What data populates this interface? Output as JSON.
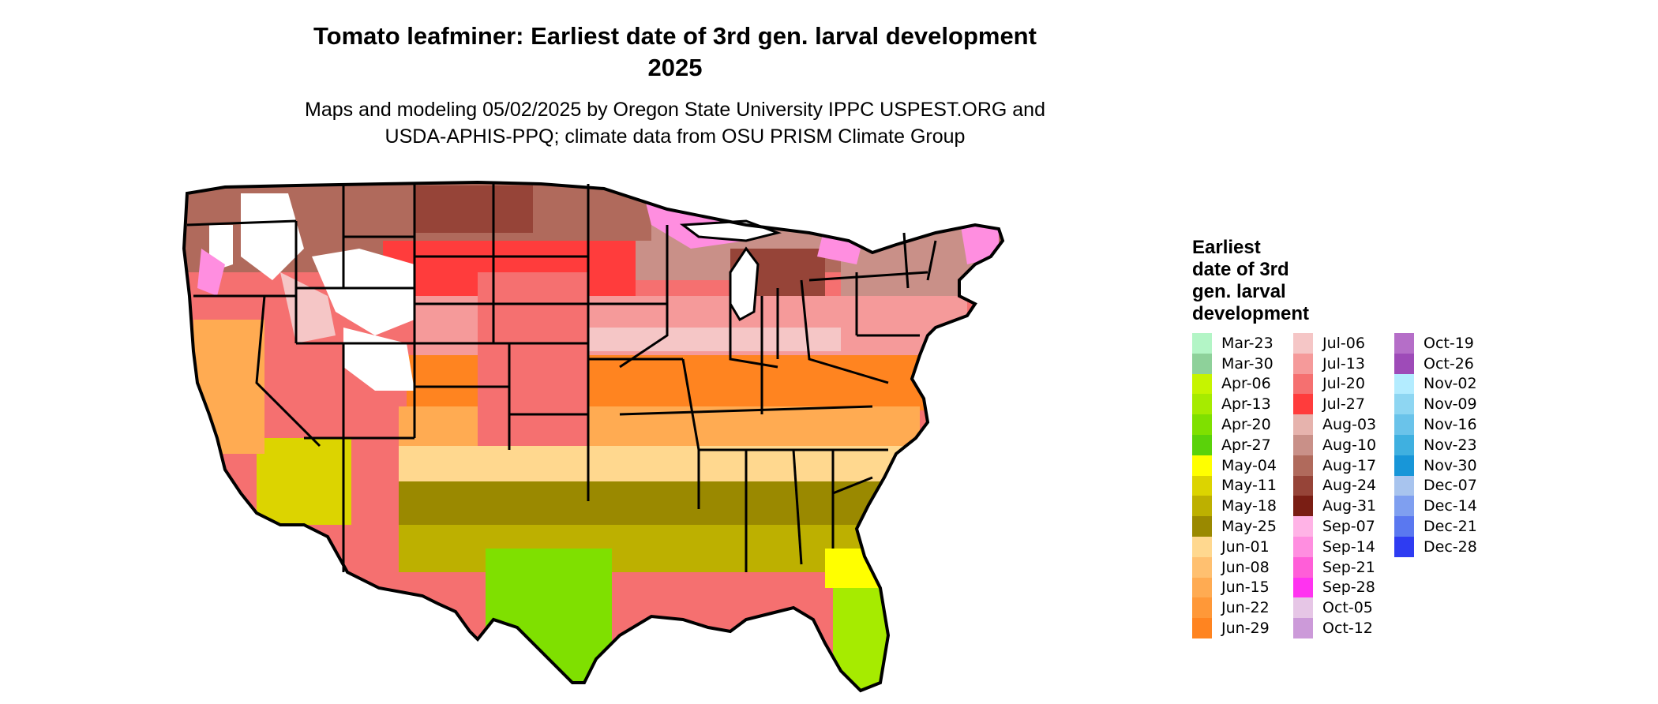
{
  "title_lines": [
    "Tomato leafminer: Earliest date of 3rd gen. larval development",
    "2025"
  ],
  "subtitle_lines": [
    "Maps and modeling 05/02/2025 by Oregon State University IPPC USPEST.ORG and",
    "USDA-APHIS-PPQ; climate data from OSU PRISM Climate Group"
  ],
  "legend": {
    "title_lines": [
      "Earliest",
      "date of 3rd",
      "gen. larval",
      "development"
    ],
    "columns": [
      [
        {
          "label": "Mar-23",
          "color": "#b3f5c6"
        },
        {
          "label": "Mar-30",
          "color": "#8ed19a"
        },
        {
          "label": "Apr-06",
          "color": "#c6f400"
        },
        {
          "label": "Apr-13",
          "color": "#a6eb00"
        },
        {
          "label": "Apr-20",
          "color": "#7fe000"
        },
        {
          "label": "Apr-27",
          "color": "#5ad20a"
        },
        {
          "label": "May-04",
          "color": "#ffff00"
        },
        {
          "label": "May-11",
          "color": "#dcd400"
        },
        {
          "label": "May-18",
          "color": "#bdb000"
        },
        {
          "label": "May-25",
          "color": "#9a8900"
        },
        {
          "label": "Jun-01",
          "color": "#ffd88f"
        },
        {
          "label": "Jun-08",
          "color": "#ffc070"
        },
        {
          "label": "Jun-15",
          "color": "#ffab52"
        },
        {
          "label": "Jun-22",
          "color": "#ff9838"
        },
        {
          "label": "Jun-29",
          "color": "#ff8420"
        }
      ],
      [
        {
          "label": "Jul-06",
          "color": "#f5c6c6"
        },
        {
          "label": "Jul-13",
          "color": "#f59a9a"
        },
        {
          "label": "Jul-20",
          "color": "#f57070"
        },
        {
          "label": "Jul-27",
          "color": "#ff3c3c"
        },
        {
          "label": "Aug-03",
          "color": "#e6b3ad"
        },
        {
          "label": "Aug-10",
          "color": "#c99088"
        },
        {
          "label": "Aug-17",
          "color": "#b06a5c"
        },
        {
          "label": "Aug-24",
          "color": "#964438"
        },
        {
          "label": "Aug-31",
          "color": "#7a1e14"
        },
        {
          "label": "Sep-07",
          "color": "#ffb3e6"
        },
        {
          "label": "Sep-14",
          "color": "#ff8ee0"
        },
        {
          "label": "Sep-21",
          "color": "#ff5ed8"
        },
        {
          "label": "Sep-28",
          "color": "#ff33f0"
        },
        {
          "label": "Oct-05",
          "color": "#e6c6e6"
        },
        {
          "label": "Oct-12",
          "color": "#cc9ad9"
        }
      ],
      [
        {
          "label": "Oct-19",
          "color": "#b56ec8"
        },
        {
          "label": "Oct-26",
          "color": "#9e4bb8"
        },
        {
          "label": "Nov-02",
          "color": "#b3ecff"
        },
        {
          "label": "Nov-09",
          "color": "#8ed6f2"
        },
        {
          "label": "Nov-16",
          "color": "#6ac3ea"
        },
        {
          "label": "Nov-23",
          "color": "#3fb0e0"
        },
        {
          "label": "Nov-30",
          "color": "#1896d8"
        },
        {
          "label": "Dec-07",
          "color": "#a8c4ee"
        },
        {
          "label": "Dec-14",
          "color": "#7f9ff0"
        },
        {
          "label": "Dec-21",
          "color": "#5a78f0"
        },
        {
          "label": "Dec-28",
          "color": "#2e3cf2"
        }
      ]
    ]
  },
  "map_colors": {
    "southeast_coast": "#9a8900",
    "gulf_band": "#bdb000",
    "florida_south": "#a6eb00",
    "texas_south": "#7fe000",
    "south_orange": "#ff8420",
    "mid_orange": "#ffab52",
    "light_orange": "#ffd88f",
    "central_pink": "#f59a9a",
    "central_red": "#ff3c3c",
    "north_brown": "#b06a5c",
    "dark_brown": "#7a1e14",
    "mountain_pink": "#ff8ee0",
    "no_development": "#ffffff",
    "west_pink": "#f57070",
    "state_border": "#000000"
  }
}
